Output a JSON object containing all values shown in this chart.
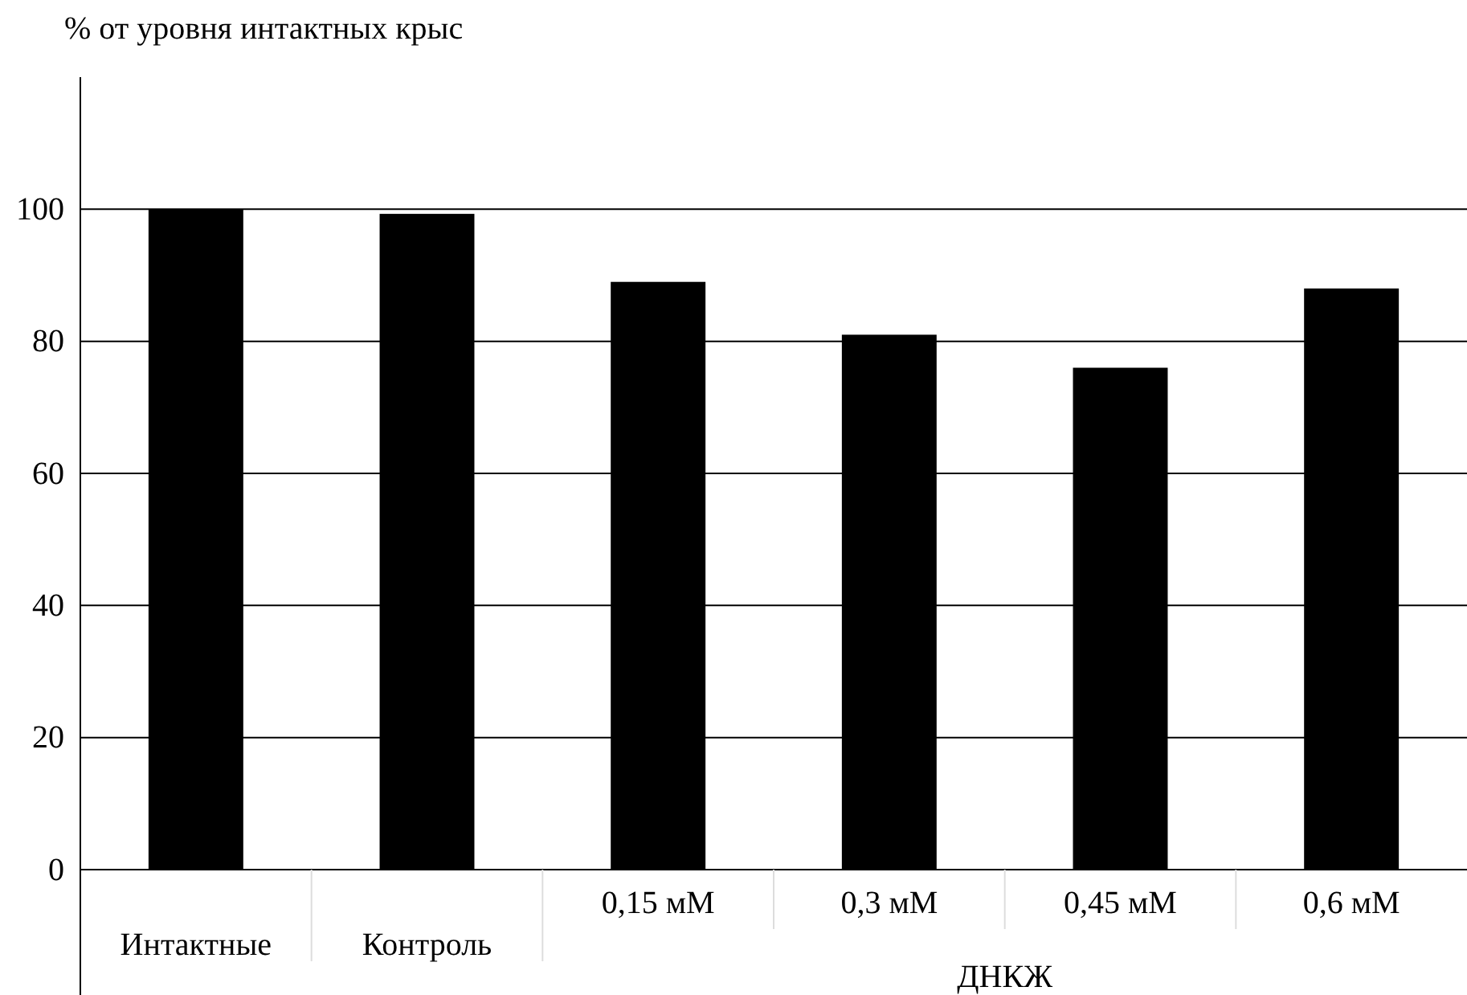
{
  "chart_data": {
    "type": "bar",
    "ylabel": "% от уровня интактных крыс",
    "xlabel": "ДНКЖ",
    "categories": [
      "Интактные",
      "Контроль",
      "0,15 мМ",
      "0,3 мМ",
      "0,45 мМ",
      "0,6 мМ"
    ],
    "values": [
      100,
      99.3,
      89,
      81,
      76,
      88
    ],
    "color": "#000000",
    "ylim": [
      0,
      120
    ],
    "yticks": [
      0,
      20,
      40,
      60,
      80,
      100
    ],
    "grid": "y"
  }
}
